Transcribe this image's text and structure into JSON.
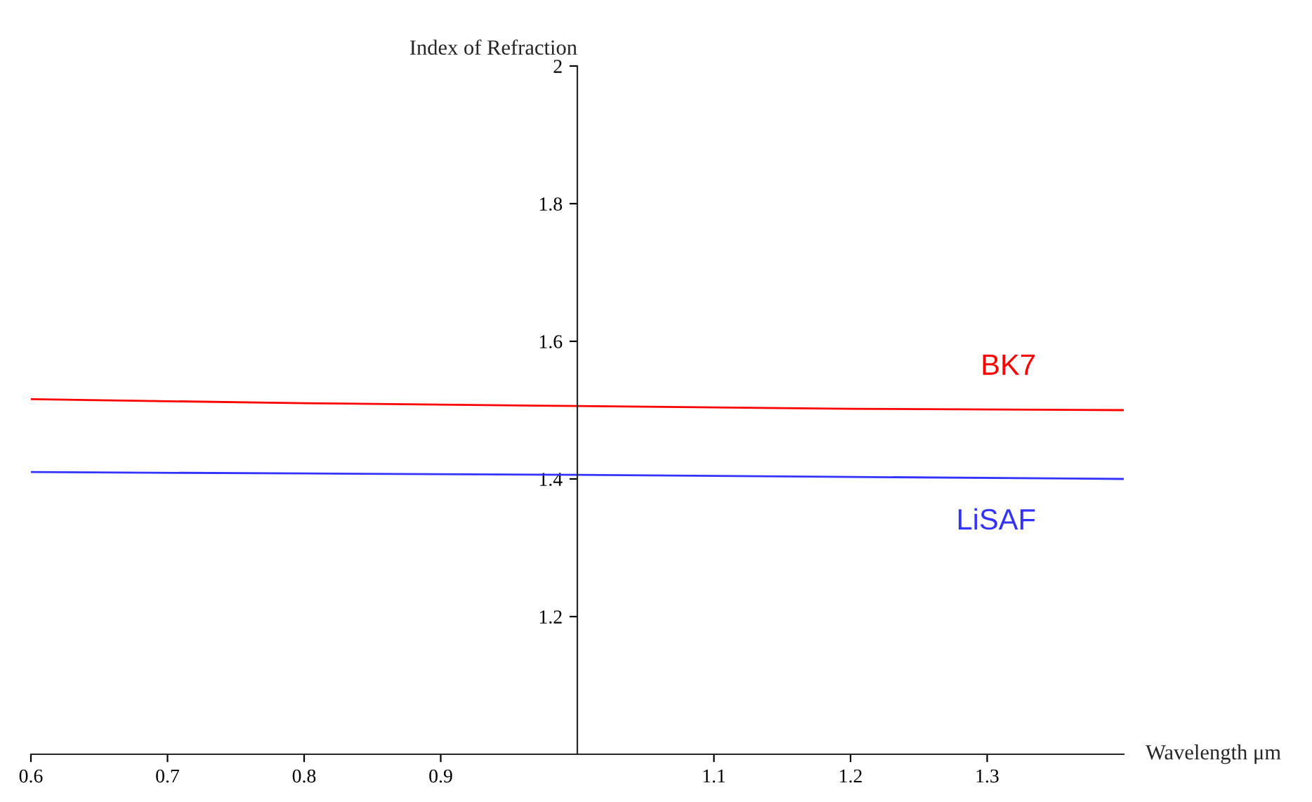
{
  "chart_data": {
    "type": "line",
    "xlabel": "Wavelength μm",
    "ylabel": "Index of Refraction",
    "xlim": [
      0.6,
      1.4
    ],
    "ylim": [
      1.0,
      2.0
    ],
    "xticks": [
      0.6,
      0.7,
      0.8,
      0.9,
      1.1,
      1.2,
      1.3
    ],
    "yticks": [
      1.2,
      1.4,
      1.6,
      1.8,
      2
    ],
    "grid": false,
    "legend": false,
    "marker": "none",
    "line_style": "solid",
    "series": [
      {
        "name": "BK7",
        "color": "#ff0000",
        "x": [
          0.6,
          0.8,
          1.0,
          1.2,
          1.4
        ],
        "values": [
          1.516,
          1.51,
          1.506,
          1.502,
          1.5
        ]
      },
      {
        "name": "LiSAF",
        "color": "#3333ff",
        "x": [
          0.6,
          0.8,
          1.0,
          1.2,
          1.4
        ],
        "values": [
          1.41,
          1.408,
          1.406,
          1.403,
          1.4
        ]
      }
    ]
  }
}
